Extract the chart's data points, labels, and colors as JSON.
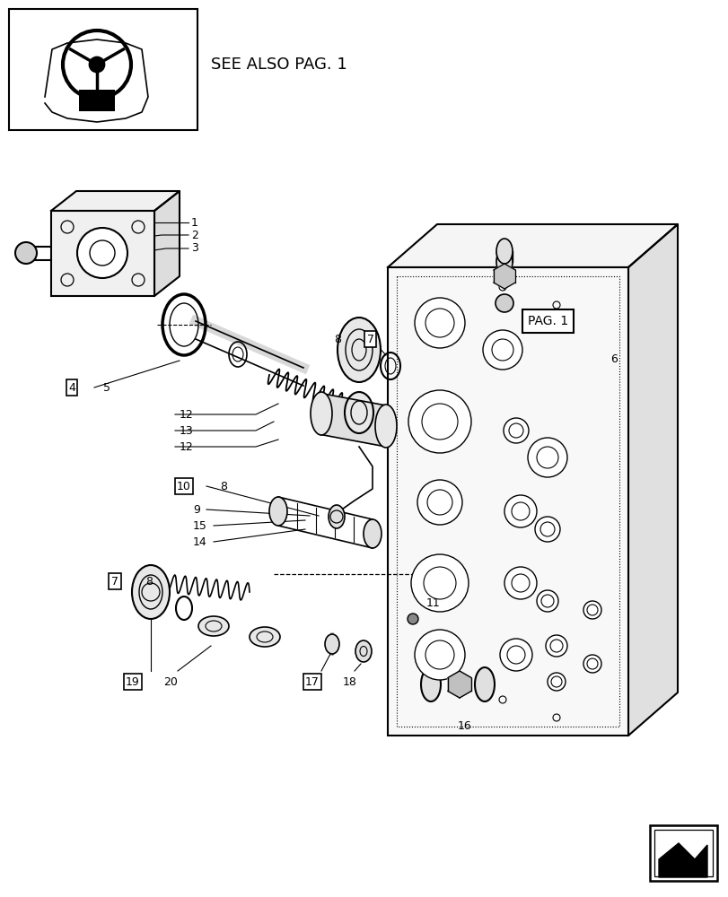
{
  "bg_color": "#ffffff",
  "see_also_text": "SEE ALSO PAG. 1",
  "pag1_label": "PAG. 1",
  "fig_width": 8.12,
  "fig_height": 10.0,
  "dpi": 100
}
